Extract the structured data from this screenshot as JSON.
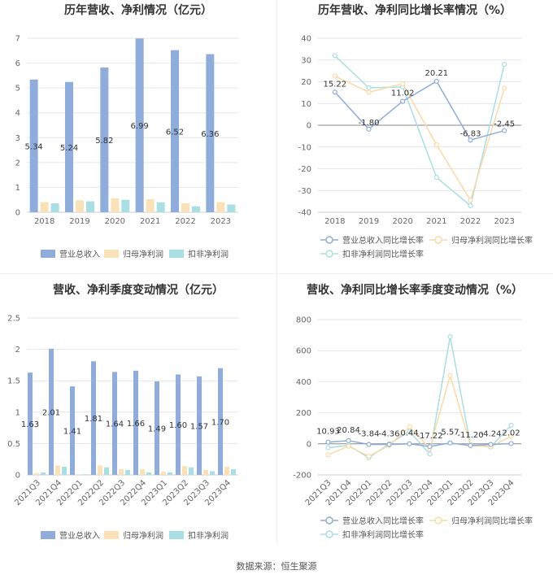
{
  "footer": {
    "source": "数据来源：恒生聚源"
  },
  "colors": {
    "revenue": "#8eacdc",
    "netprofit": "#fbe2b6",
    "deducted": "#a8dfe3",
    "revenue_line": "#8eacdc",
    "netprofit_line": "#fcd9a5",
    "deducted_line": "#a8dfe3"
  },
  "chart_data": [
    {
      "type": "bar",
      "title": "历年营收、净利情况（亿元）",
      "categories": [
        "2018",
        "2019",
        "2020",
        "2021",
        "2022",
        "2023"
      ],
      "ylim": [
        0,
        7
      ],
      "yticks": [
        "0",
        "1",
        "2",
        "3",
        "4",
        "5",
        "6",
        "7"
      ],
      "series": [
        {
          "name": "营业总收入",
          "values": [
            5.34,
            5.24,
            5.82,
            6.99,
            6.52,
            6.36
          ],
          "labels": [
            "5.34",
            "5.24",
            "5.82",
            "6.99",
            "6.52",
            "6.36"
          ]
        },
        {
          "name": "归母净利润",
          "values": [
            0.41,
            0.48,
            0.56,
            0.52,
            0.36,
            0.41
          ]
        },
        {
          "name": "扣非净利润",
          "values": [
            0.36,
            0.44,
            0.5,
            0.4,
            0.24,
            0.31
          ]
        }
      ],
      "legend": [
        "营业总收入",
        "归母净利润",
        "扣非净利润"
      ]
    },
    {
      "type": "line",
      "title": "历年营收、净利同比增长率情况（%）",
      "categories": [
        "2018",
        "2019",
        "2020",
        "2021",
        "2022",
        "2023"
      ],
      "ylim": [
        -40,
        40
      ],
      "yticks": [
        "-40",
        "-30",
        "-20",
        "-10",
        "0",
        "10",
        "20",
        "30",
        "40"
      ],
      "series": [
        {
          "name": "营业总收入同比增长率",
          "values": [
            15.22,
            -1.8,
            11.02,
            20.21,
            -6.83,
            -2.45
          ],
          "labels": [
            "15.22",
            "-1.80",
            "11.02",
            "20.21",
            "-6.83",
            "-2.45"
          ]
        },
        {
          "name": "归母净利润同比增长率",
          "values": [
            22.6,
            15.2,
            19.0,
            -9.0,
            -34.5,
            17.0
          ]
        },
        {
          "name": "扣非净利润同比增长率",
          "values": [
            32.0,
            17.2,
            17.6,
            -24.0,
            -37.0,
            28.0
          ]
        }
      ],
      "legend": [
        "营业总收入同比增长率",
        "归母净利润同比增长率",
        "扣非净利润同比增长率"
      ]
    },
    {
      "type": "bar",
      "title": "营收、净利季度变动情况（亿元）",
      "categories": [
        "2021Q3",
        "2021Q4",
        "2022Q1",
        "2022Q2",
        "2022Q3",
        "2022Q4",
        "2023Q1",
        "2023Q2",
        "2023Q3",
        "2023Q4"
      ],
      "ylim": [
        0,
        2.5
      ],
      "yticks": [
        "0",
        "0.5",
        "1",
        "1.5",
        "2",
        "2.5"
      ],
      "series": [
        {
          "name": "营业总收入",
          "values": [
            1.63,
            2.01,
            1.41,
            1.81,
            1.64,
            1.66,
            1.49,
            1.6,
            1.57,
            1.7
          ],
          "labels": [
            "1.63",
            "2.01",
            "1.41",
            "1.81",
            "1.64",
            "1.66",
            "1.49",
            "1.60",
            "1.57",
            "1.70"
          ]
        },
        {
          "name": "归母净利润",
          "values": [
            0.03,
            0.15,
            0.01,
            0.15,
            0.09,
            0.09,
            0.05,
            0.14,
            0.08,
            0.13
          ]
        },
        {
          "name": "扣非净利润",
          "values": [
            0.04,
            0.13,
            0.01,
            0.12,
            0.08,
            0.04,
            0.04,
            0.12,
            0.06,
            0.09
          ]
        }
      ],
      "legend": [
        "营业总收入",
        "归母净利润",
        "扣非净利润"
      ]
    },
    {
      "type": "line",
      "title": "营收、净利同比增长率季度变动情况（%）",
      "categories": [
        "2021Q3",
        "2021Q4",
        "2022Q1",
        "2022Q2",
        "2022Q3",
        "2022Q4",
        "2023Q1",
        "2023Q2",
        "2023Q3",
        "2023Q4"
      ],
      "ylim": [
        -200,
        800
      ],
      "yticks": [
        "-200",
        "0",
        "200",
        "400",
        "600",
        "800"
      ],
      "series": [
        {
          "name": "营业总收入同比增长率",
          "values": [
            10.93,
            20.84,
            -3.84,
            -4.36,
            0.44,
            -17.22,
            5.57,
            -11.2,
            -4.24,
            2.02
          ],
          "labels": [
            "10.93",
            "20.84",
            "-3.84",
            "-4.36",
            "0.44",
            "-17.22",
            "5.57",
            "-11.20",
            "-4.24",
            "2.02"
          ]
        },
        {
          "name": "归母净利润同比增长率",
          "values": [
            -70,
            -15,
            -80,
            -10,
            110,
            -30,
            440,
            -10,
            -20,
            50
          ]
        },
        {
          "name": "扣非净利润同比增长率",
          "values": [
            -25,
            -10,
            -90,
            0,
            80,
            -65,
            690,
            -5,
            -20,
            120
          ]
        }
      ],
      "legend": [
        "营业总收入同比增长率",
        "归母净利润同比增长率",
        "扣非净利润同比增长率"
      ]
    }
  ]
}
